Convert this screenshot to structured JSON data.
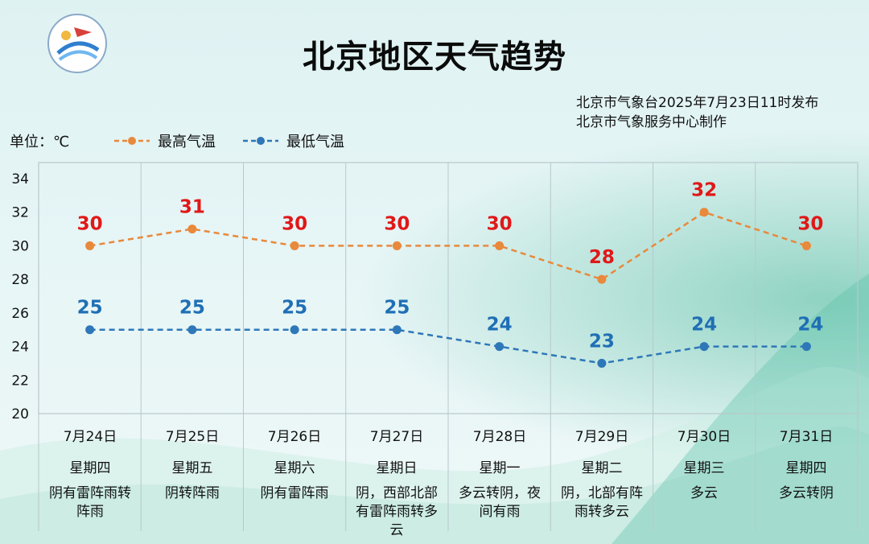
{
  "header": {
    "title": "北京地区天气趋势",
    "issuer_line1": "北京市气象台2025年7月23日11时发布",
    "issuer_line2": "北京市气象服务中心制作",
    "unit_label": "单位：℃"
  },
  "colors": {
    "high": "#e8893b",
    "low": "#2e77b8",
    "high_label": "#e01818",
    "low_label": "#1f6fb5",
    "grid": "#b9c7cc"
  },
  "chart_data": {
    "type": "line",
    "ylim": [
      20,
      34
    ],
    "yticks": [
      "20",
      "22",
      "24",
      "26",
      "28",
      "30",
      "32",
      "34"
    ],
    "categories": [
      "7月24日",
      "7月25日",
      "7月26日",
      "7月27日",
      "7月28日",
      "7月29日",
      "7月30日",
      "7月31日"
    ],
    "weekdays": [
      "星期四",
      "星期五",
      "星期六",
      "星期日",
      "星期一",
      "星期二",
      "星期三",
      "星期四"
    ],
    "descriptions": [
      [
        "阴有雷阵雨转",
        "阵雨"
      ],
      [
        "阴转阵雨"
      ],
      [
        "阴有雷阵雨"
      ],
      [
        "阴，西部北部",
        "有雷阵雨转多",
        "云"
      ],
      [
        "多云转阴，夜",
        "间有雨"
      ],
      [
        "阴，北部有阵",
        "雨转多云"
      ],
      [
        "多云"
      ],
      [
        "多云转阴"
      ]
    ],
    "series": [
      {
        "name": "最高气温",
        "values": [
          30,
          31,
          30,
          30,
          30,
          28,
          32,
          30
        ]
      },
      {
        "name": "最低气温",
        "values": [
          25,
          25,
          25,
          25,
          24,
          23,
          24,
          24
        ]
      }
    ],
    "grid": true,
    "legend_position": "top-left"
  }
}
